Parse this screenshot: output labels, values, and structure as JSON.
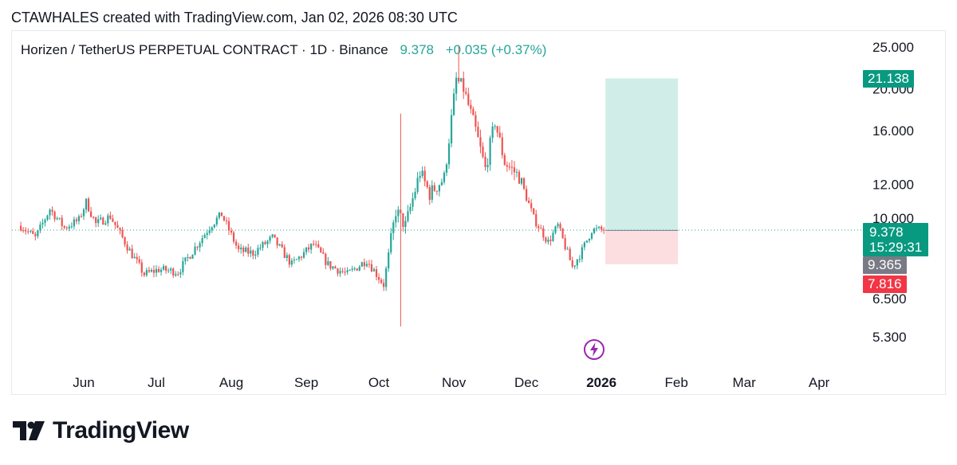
{
  "header": {
    "attribution": "CTAWHALES created with TradingView.com, Jan 02, 2026 08:30 UTC"
  },
  "legend": {
    "symbol": "Horizen / TetherUS PERPETUAL CONTRACT · 1D · Binance",
    "last": "9.378",
    "change": "+0.035 (+0.37%)"
  },
  "badges": {
    "target": "21.138",
    "price": "9.378",
    "countdown": "15:29:31",
    "prev": "9.365",
    "stop": "7.816"
  },
  "logo": {
    "text": "TradingView"
  },
  "colors": {
    "up": "#26a69a",
    "down": "#ef5350",
    "target_zone": "#d1ede8",
    "stop_zone": "#fcdde0"
  },
  "chart_data": {
    "type": "candlestick",
    "scale": "log",
    "y_ticks": [
      "25.000",
      "20.000",
      "16.000",
      "12.000",
      "10.000",
      "6.500",
      "5.300"
    ],
    "y_tick_values": [
      25,
      20,
      16,
      12,
      10,
      6.5,
      5.3
    ],
    "x_ticks": [
      {
        "label": "Jun",
        "date": "2025-06-01"
      },
      {
        "label": "Jul",
        "date": "2025-07-01"
      },
      {
        "label": "Aug",
        "date": "2025-08-01"
      },
      {
        "label": "Sep",
        "date": "2025-09-01"
      },
      {
        "label": "Oct",
        "date": "2025-10-01"
      },
      {
        "label": "Nov",
        "date": "2025-11-01"
      },
      {
        "label": "Dec",
        "date": "2025-12-01"
      },
      {
        "label": "2026",
        "date": "2026-01-01",
        "bold": true
      },
      {
        "label": "Feb",
        "date": "2026-02-01"
      },
      {
        "label": "Mar",
        "date": "2026-03-01"
      },
      {
        "label": "Apr",
        "date": "2026-04-01"
      }
    ],
    "close_path": [
      [
        "2025-05-06",
        9.6
      ],
      [
        "2025-05-12",
        9.0
      ],
      [
        "2025-05-18",
        10.5
      ],
      [
        "2025-05-24",
        9.5
      ],
      [
        "2025-05-30",
        9.9
      ],
      [
        "2025-06-02",
        10.9
      ],
      [
        "2025-06-06",
        9.7
      ],
      [
        "2025-06-12",
        10.1
      ],
      [
        "2025-06-20",
        8.4
      ],
      [
        "2025-06-26",
        7.4
      ],
      [
        "2025-07-02",
        7.6
      ],
      [
        "2025-07-10",
        7.5
      ],
      [
        "2025-07-18",
        8.7
      ],
      [
        "2025-07-24",
        9.7
      ],
      [
        "2025-07-28",
        10.2
      ],
      [
        "2025-08-04",
        8.4
      ],
      [
        "2025-08-10",
        8.3
      ],
      [
        "2025-08-18",
        9.0
      ],
      [
        "2025-08-26",
        7.8
      ],
      [
        "2025-09-04",
        8.7
      ],
      [
        "2025-09-10",
        7.8
      ],
      [
        "2025-09-18",
        7.4
      ],
      [
        "2025-09-26",
        8.0
      ],
      [
        "2025-10-03",
        7.0
      ],
      [
        "2025-10-08",
        10.4
      ],
      [
        "2025-10-12",
        9.6
      ],
      [
        "2025-10-18",
        12.8
      ],
      [
        "2025-10-22",
        11.4
      ],
      [
        "2025-10-28",
        12.4
      ],
      [
        "2025-11-02",
        21.0
      ],
      [
        "2025-11-05",
        20.0
      ],
      [
        "2025-11-10",
        16.0
      ],
      [
        "2025-11-14",
        13.0
      ],
      [
        "2025-11-18",
        16.8
      ],
      [
        "2025-11-22",
        13.5
      ],
      [
        "2025-11-28",
        12.5
      ],
      [
        "2025-12-04",
        10.0
      ],
      [
        "2025-12-10",
        8.8
      ],
      [
        "2025-12-14",
        9.6
      ],
      [
        "2025-12-20",
        7.7
      ],
      [
        "2025-12-24",
        8.4
      ],
      [
        "2025-12-28",
        9.4
      ],
      [
        "2026-01-02",
        9.378
      ]
    ],
    "seed": 7,
    "long_position": {
      "entry": 9.365,
      "target": 21.138,
      "stop": 7.816,
      "start": "2026-01-02",
      "end": "2026-02-01"
    },
    "current_price": 9.378,
    "spikes": [
      {
        "date": "2025-10-10",
        "high": 17.5,
        "low": 5.6
      }
    ]
  }
}
